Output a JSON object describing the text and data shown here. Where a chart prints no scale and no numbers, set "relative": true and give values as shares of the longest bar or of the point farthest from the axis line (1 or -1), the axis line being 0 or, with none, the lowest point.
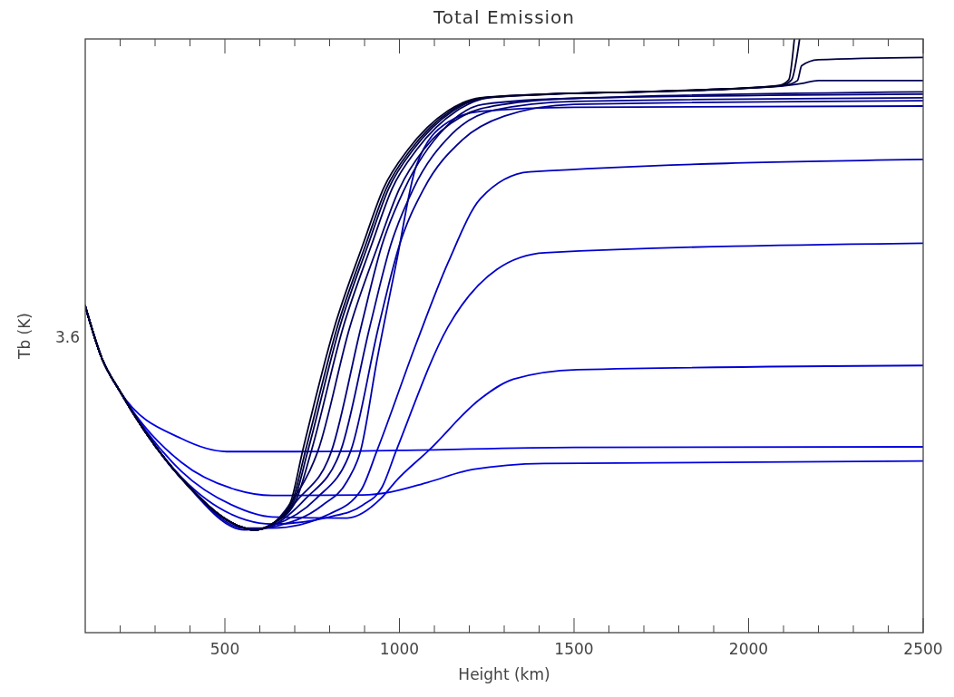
{
  "chart_data": {
    "type": "line",
    "title": "Total Emission",
    "xlabel": "Height (km)",
    "ylabel": "Tb (K)",
    "relative": true,
    "xlim": [
      100,
      2500
    ],
    "xticks": [
      {
        "value": 200,
        "label": null
      },
      {
        "value": 300,
        "label": null
      },
      {
        "value": 400,
        "label": null
      },
      500,
      {
        "value": 600,
        "label": null
      },
      {
        "value": 700,
        "label": null
      },
      {
        "value": 800,
        "label": null
      },
      {
        "value": 900,
        "label": null
      },
      1000,
      {
        "value": 1100,
        "label": null
      },
      {
        "value": 1200,
        "label": null
      },
      {
        "value": 1300,
        "label": null
      },
      {
        "value": 1400,
        "label": null
      },
      1500,
      {
        "value": 1600,
        "label": null
      },
      {
        "value": 1700,
        "label": null
      },
      {
        "value": 1800,
        "label": null
      },
      {
        "value": 1900,
        "label": null
      },
      2000,
      {
        "value": 2100,
        "label": null
      },
      {
        "value": 2200,
        "label": null
      },
      {
        "value": 2300,
        "label": null
      },
      {
        "value": 2400,
        "label": null
      },
      2500
    ],
    "annotations": [
      "3.6"
    ],
    "grid": false,
    "marker": "none",
    "line_style": "solid",
    "series": [
      {
        "color": "#0000e6",
        "x": [
          100,
          147,
          201,
          375,
          505,
          700,
          1000,
          1500,
          2500
        ],
        "values": [
          0.55,
          0.463,
          0.405,
          0.327,
          0.305,
          0.305,
          0.307,
          0.312,
          0.313
        ]
      },
      {
        "color": "#0000e0",
        "x": [
          100,
          147,
          201,
          375,
          530,
          635,
          895,
          975,
          1080,
          1210,
          1414,
          2500
        ],
        "values": [
          0.55,
          0.463,
          0.405,
          0.287,
          0.241,
          0.231,
          0.232,
          0.237,
          0.253,
          0.275,
          0.285,
          0.289
        ]
      },
      {
        "color": "#0000d8",
        "x": [
          100,
          147,
          201,
          375,
          520,
          635,
          850,
          947,
          991,
          1084,
          1232,
          1326,
          1510,
          2500
        ],
        "values": [
          0.55,
          0.463,
          0.405,
          0.272,
          0.215,
          0.195,
          0.193,
          0.226,
          0.256,
          0.307,
          0.394,
          0.427,
          0.443,
          0.45
        ]
      },
      {
        "color": "#0000cc",
        "x": [
          100,
          147,
          201,
          375,
          560,
          635,
          800,
          895,
          950,
          991,
          1139,
          1279,
          1417,
          2500
        ],
        "values": [
          0.55,
          0.463,
          0.405,
          0.262,
          0.19,
          0.183,
          0.195,
          0.215,
          0.245,
          0.307,
          0.515,
          0.612,
          0.64,
          0.656
        ]
      },
      {
        "color": "#0000bd",
        "x": [
          100,
          147,
          201,
          375,
          557,
          635,
          800,
          890,
          936,
          1048,
          1139,
          1232,
          1373,
          2500
        ],
        "values": [
          0.55,
          0.463,
          0.405,
          0.261,
          0.176,
          0.176,
          0.2,
          0.24,
          0.307,
          0.487,
          0.623,
          0.731,
          0.776,
          0.797
        ]
      },
      {
        "color": "#0000aa",
        "x": [
          100,
          147,
          201,
          375,
          557,
          635,
          780,
          850,
          889,
          936,
          991,
          1048,
          1139,
          1232,
          1500,
          2500
        ],
        "values": [
          0.55,
          0.463,
          0.405,
          0.26,
          0.173,
          0.178,
          0.215,
          0.255,
          0.307,
          0.46,
          0.623,
          0.786,
          0.86,
          0.878,
          0.885,
          0.887
        ]
      },
      {
        "color": "#000096",
        "x": [
          100,
          147,
          201,
          375,
          557,
          583,
          635,
          760,
          861,
          940,
          1000,
          1070,
          1180,
          1300,
          1500,
          2500
        ],
        "values": [
          0.55,
          0.463,
          0.405,
          0.26,
          0.176,
          0.173,
          0.18,
          0.225,
          0.307,
          0.515,
          0.653,
          0.748,
          0.83,
          0.87,
          0.89,
          0.896
        ]
      },
      {
        "color": "#000088",
        "x": [
          100,
          147,
          201,
          375,
          557,
          583,
          635,
          730,
          832,
          915,
          975,
          1040,
          1150,
          1270,
          1500,
          2500
        ],
        "values": [
          0.55,
          0.463,
          0.405,
          0.26,
          0.176,
          0.173,
          0.18,
          0.225,
          0.307,
          0.515,
          0.653,
          0.748,
          0.84,
          0.88,
          0.895,
          0.901
        ]
      },
      {
        "color": "#00007a",
        "x": [
          100,
          147,
          201,
          375,
          557,
          583,
          635,
          710,
          806,
          890,
          950,
          1015,
          1130,
          1240,
          1500,
          2500
        ],
        "values": [
          0.55,
          0.463,
          0.405,
          0.26,
          0.176,
          0.173,
          0.182,
          0.225,
          0.307,
          0.515,
          0.653,
          0.748,
          0.85,
          0.89,
          0.9,
          0.907
        ]
      },
      {
        "color": "#00006a",
        "x": [
          100,
          147,
          201,
          375,
          557,
          583,
          635,
          690,
          767,
          858,
          939,
          1000,
          1070,
          1180,
          1300,
          1500,
          2500
        ],
        "values": [
          0.55,
          0.463,
          0.405,
          0.26,
          0.176,
          0.173,
          0.183,
          0.22,
          0.307,
          0.515,
          0.653,
          0.748,
          0.814,
          0.87,
          0.89,
          0.9,
          0.911
        ]
      },
      {
        "color": "#000058",
        "x": [
          100,
          147,
          201,
          375,
          557,
          583,
          635,
          700,
          748,
          839,
          920,
          979,
          1050,
          1164,
          1257,
          1439,
          1699,
          1959,
          2114,
          2152,
          2200,
          2500
        ],
        "values": [
          0.55,
          0.463,
          0.405,
          0.26,
          0.176,
          0.173,
          0.183,
          0.218,
          0.307,
          0.515,
          0.653,
          0.748,
          0.814,
          0.879,
          0.901,
          0.907,
          0.911,
          0.916,
          0.922,
          0.925,
          0.93,
          0.93
        ]
      },
      {
        "color": "#000048",
        "x": [
          100,
          147,
          201,
          375,
          557,
          583,
          635,
          695,
          738,
          829,
          910,
          969,
          1040,
          1154,
          1247,
          1429,
          1689,
          1949,
          2104,
          2140,
          2152,
          2200,
          2500
        ],
        "values": [
          0.55,
          0.463,
          0.405,
          0.26,
          0.176,
          0.173,
          0.183,
          0.218,
          0.307,
          0.515,
          0.653,
          0.748,
          0.814,
          0.879,
          0.901,
          0.907,
          0.911,
          0.916,
          0.922,
          0.93,
          0.955,
          0.965,
          0.969
        ]
      },
      {
        "color": "#000038",
        "x": [
          100,
          147,
          201,
          375,
          557,
          583,
          635,
          691,
          731,
          822,
          903,
          962,
          1033,
          1147,
          1240,
          1422,
          1682,
          1942,
          2097,
          2123,
          2146
        ],
        "values": [
          0.55,
          0.463,
          0.405,
          0.26,
          0.176,
          0.173,
          0.183,
          0.218,
          0.307,
          0.515,
          0.653,
          0.748,
          0.814,
          0.879,
          0.901,
          0.907,
          0.911,
          0.916,
          0.922,
          0.931,
          1.0
        ]
      },
      {
        "color": "#00002a",
        "x": [
          100,
          147,
          201,
          375,
          557,
          583,
          635,
          687,
          723,
          814,
          895,
          954,
          1025,
          1139,
          1232,
          1414,
          1674,
          1934,
          2089,
          2115,
          2131
        ],
        "values": [
          0.55,
          0.463,
          0.405,
          0.26,
          0.176,
          0.173,
          0.183,
          0.218,
          0.307,
          0.515,
          0.653,
          0.748,
          0.814,
          0.879,
          0.901,
          0.907,
          0.911,
          0.916,
          0.922,
          0.931,
          1.0
        ]
      }
    ]
  }
}
